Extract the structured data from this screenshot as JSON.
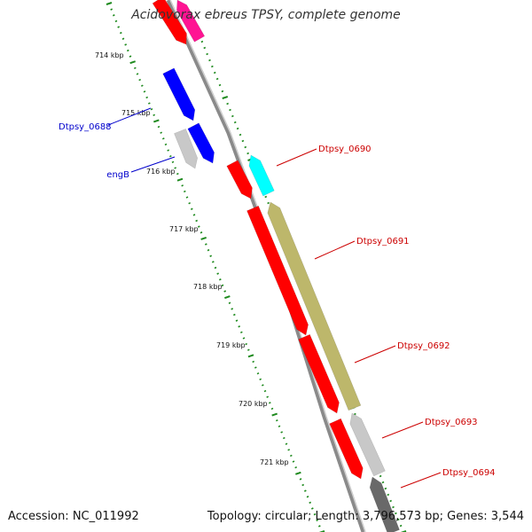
{
  "title": "Acidovorax ebreus TPSY, complete genome",
  "accession": "Accession: NC_011992",
  "summary": "Topology: circular; Length: 3,796,573 bp; Genes: 3,544",
  "colors": {
    "backbone": "#8a8a8a",
    "tick": "#1e8a1e",
    "red": "#ff0000",
    "magenta": "#ff1493",
    "blue": "#0000ff",
    "cyan": "#00ffff",
    "olive": "#bdb76b",
    "lightgray": "#c8c8c8",
    "darkgray": "#696969",
    "label_red": "#cc0000",
    "label_blue": "#0000cc"
  },
  "kbp_labels": [
    "714 kbp",
    "715 kbp",
    "716 kbp",
    "717 kbp",
    "718 kbp",
    "719 kbp",
    "720 kbp",
    "721 kbp"
  ],
  "gene_labels": [
    {
      "text": "Dtpsy_0688",
      "color": "blue"
    },
    {
      "text": "engB",
      "color": "blue"
    },
    {
      "text": "Dtpsy_0690",
      "color": "red"
    },
    {
      "text": "Dtpsy_0691",
      "color": "red"
    },
    {
      "text": "Dtpsy_0692",
      "color": "red"
    },
    {
      "text": "Dtpsy_0693",
      "color": "red"
    },
    {
      "text": "Dtpsy_0694",
      "color": "red"
    }
  ],
  "features": [
    {
      "color": "red",
      "strand": "reverse"
    },
    {
      "color": "magenta",
      "strand": "forward"
    },
    {
      "color": "blue",
      "strand": "reverse"
    },
    {
      "color": "lightgray",
      "strand": "reverse"
    },
    {
      "color": "blue",
      "strand": "reverse"
    },
    {
      "color": "red",
      "strand": "reverse"
    },
    {
      "color": "cyan",
      "strand": "forward"
    },
    {
      "color": "red",
      "strand": "reverse"
    },
    {
      "color": "olive",
      "strand": "forward"
    },
    {
      "color": "red",
      "strand": "reverse"
    },
    {
      "color": "lightgray",
      "strand": "forward"
    },
    {
      "color": "red",
      "strand": "reverse"
    },
    {
      "color": "darkgray",
      "strand": "forward"
    }
  ]
}
